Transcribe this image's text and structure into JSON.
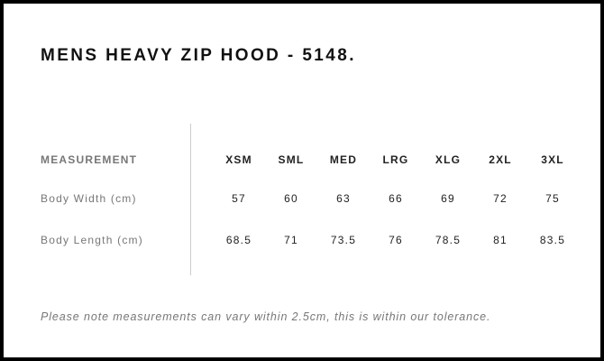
{
  "title": "MENS HEAVY ZIP HOOD - 5148.",
  "table": {
    "header_label": "MEASUREMENT",
    "sizes": [
      "XSM",
      "SML",
      "MED",
      "LRG",
      "XLG",
      "2XL",
      "3XL"
    ],
    "rows": [
      {
        "label": "Body Width (cm)",
        "values": [
          "57",
          "60",
          "63",
          "66",
          "69",
          "72",
          "75"
        ]
      },
      {
        "label": "Body Length (cm)",
        "values": [
          "68.5",
          "71",
          "73.5",
          "76",
          "78.5",
          "81",
          "83.5"
        ]
      }
    ]
  },
  "note": "Please note measurements can vary within 2.5cm, this is within our tolerance."
}
